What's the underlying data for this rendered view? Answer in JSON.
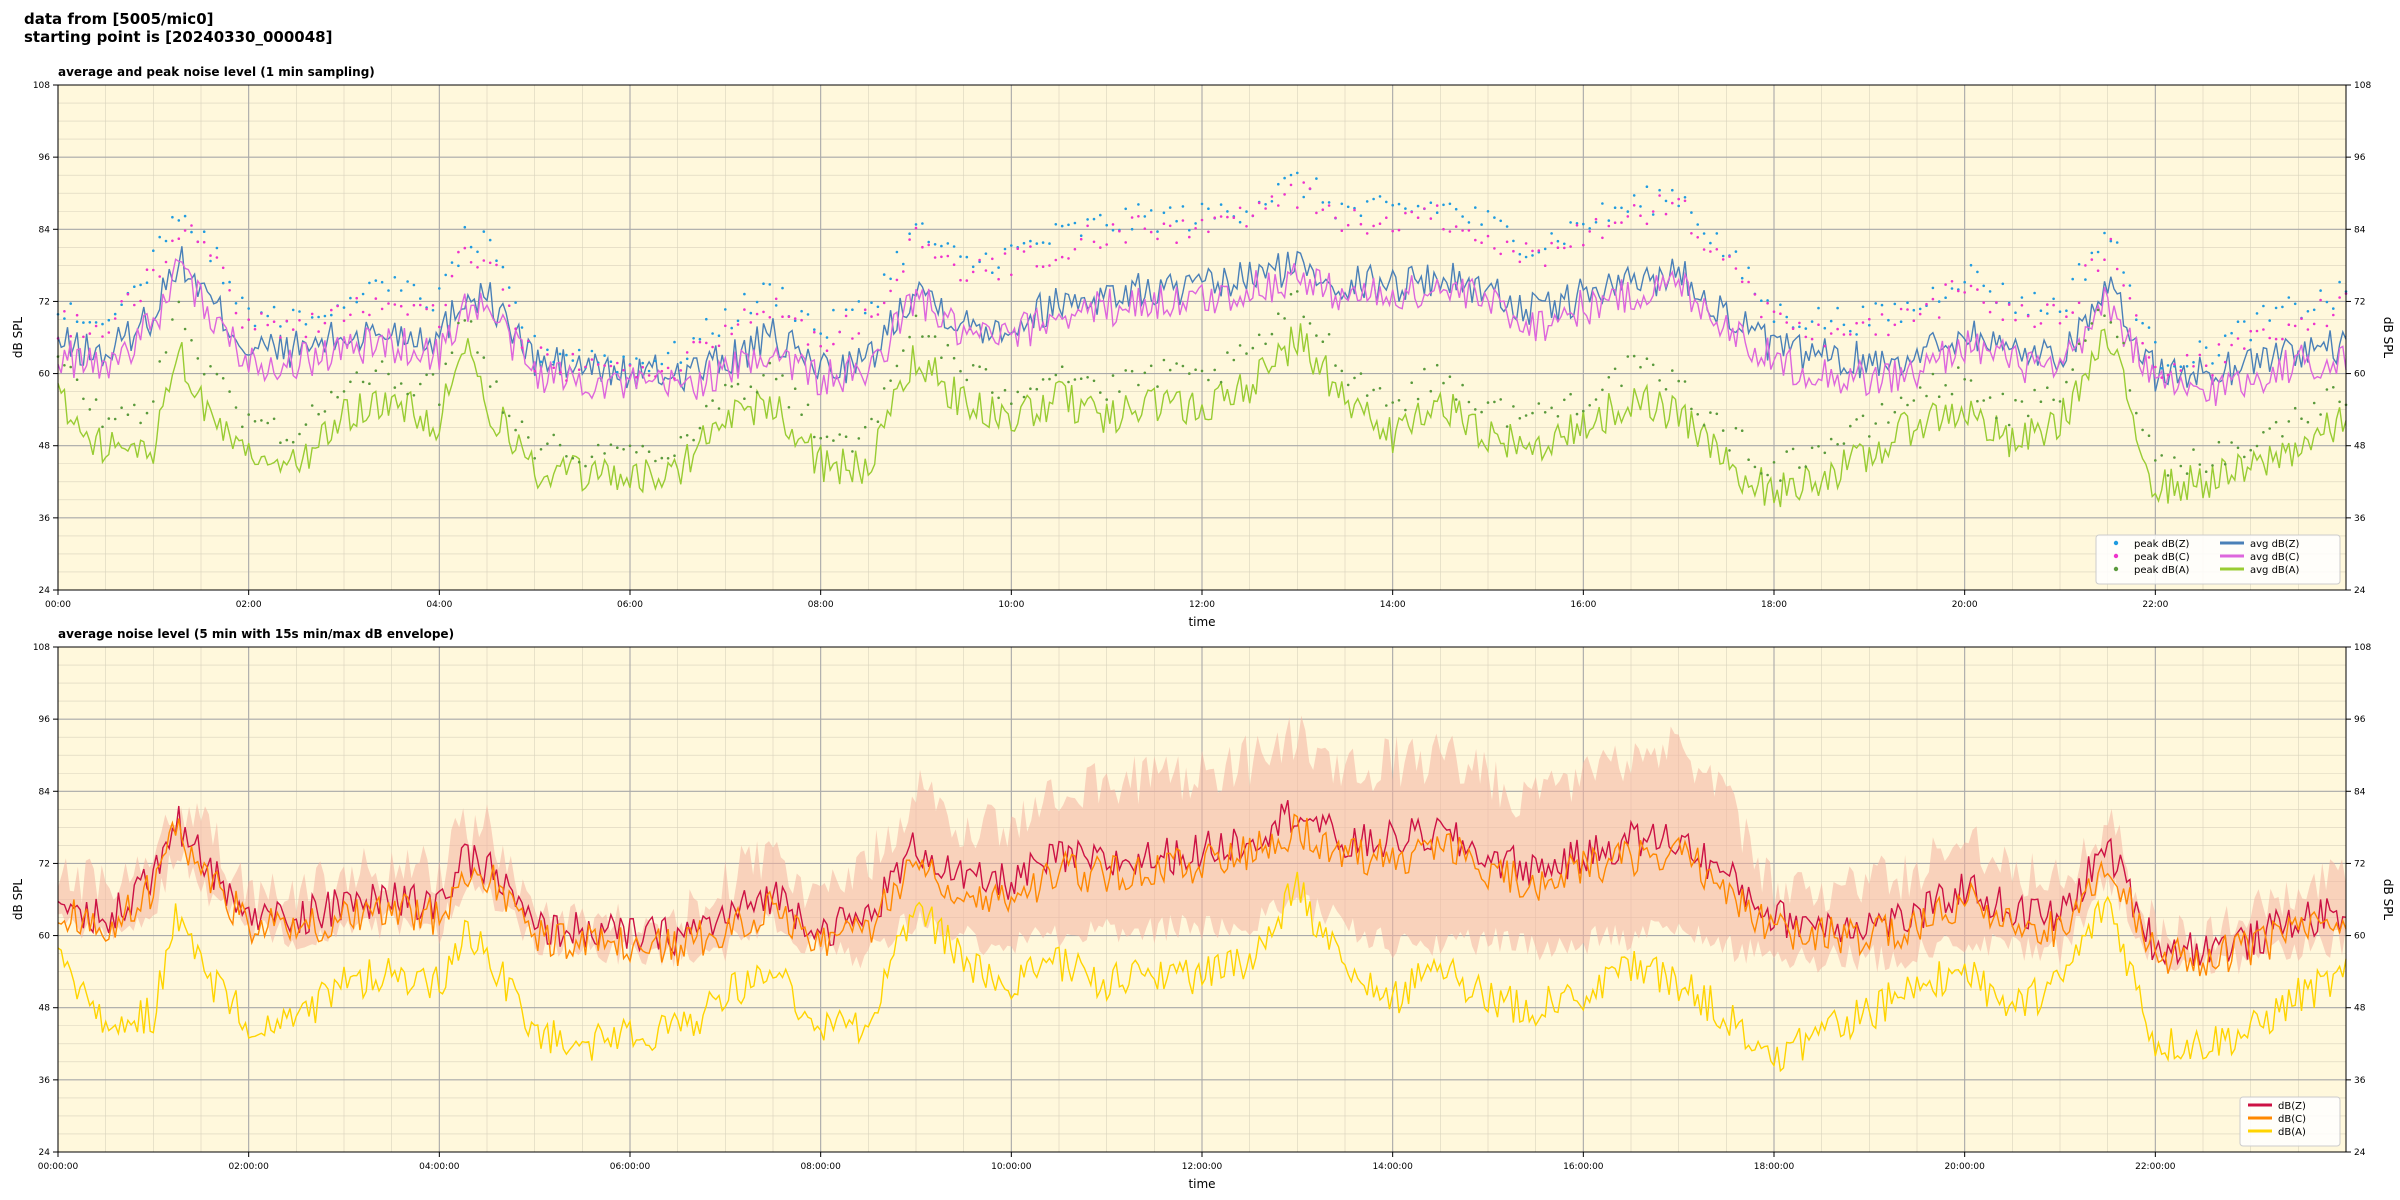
{
  "header": {
    "line1": "data from [5005/mic0]",
    "line2": "starting point is [20240330_000048]"
  },
  "colors": {
    "panel_bg": "#fff8dc",
    "peak_z": "#1f9be0",
    "peak_c": "#ee33cc",
    "peak_a": "#5a9a3c",
    "avg_z": "#4a80b8",
    "avg_c": "#dd66dd",
    "avg_a": "#99cc33",
    "dbz": "#cc1144",
    "dbc": "#ff8800",
    "dba": "#ffd400",
    "envelope": "#f4b3a0"
  },
  "chart_data": [
    {
      "type": "line",
      "title": "average and peak noise level (1 min sampling)",
      "xlabel": "time",
      "ylabel": "dB SPL",
      "ylabel_right": "dB SPL",
      "xlim": [
        0,
        24
      ],
      "ylim": [
        24,
        108
      ],
      "yticks": [
        24,
        36,
        48,
        60,
        72,
        84,
        96,
        108
      ],
      "xticks": [
        0,
        2,
        4,
        6,
        8,
        10,
        12,
        14,
        16,
        18,
        20,
        22
      ],
      "xtick_labels": [
        "00:00",
        "02:00",
        "04:00",
        "06:00",
        "08:00",
        "10:00",
        "12:00",
        "14:00",
        "16:00",
        "18:00",
        "20:00",
        "22:00"
      ],
      "grid": true,
      "legend_position": "bottom-right",
      "legend": [
        {
          "label": "peak dB(Z)",
          "marker": "dot",
          "color_key": "peak_z"
        },
        {
          "label": "peak dB(C)",
          "marker": "dot",
          "color_key": "peak_c"
        },
        {
          "label": "peak dB(A)",
          "marker": "dot",
          "color_key": "peak_a"
        },
        {
          "label": "avg dB(Z)",
          "marker": "line",
          "color_key": "avg_z"
        },
        {
          "label": "avg dB(C)",
          "marker": "line",
          "color_key": "avg_c"
        },
        {
          "label": "avg dB(A)",
          "marker": "line",
          "color_key": "avg_a"
        }
      ],
      "x": [
        0,
        0.5,
        1,
        1.25,
        1.5,
        2,
        2.5,
        3,
        3.5,
        4,
        4.25,
        4.5,
        5,
        5.5,
        6,
        6.5,
        7,
        7.5,
        8,
        8.5,
        9,
        9.5,
        10,
        10.5,
        11,
        11.5,
        12,
        12.5,
        13,
        13.5,
        14,
        14.5,
        15,
        15.5,
        16,
        16.5,
        17,
        17.5,
        18,
        18.5,
        19,
        19.5,
        20,
        20.5,
        21,
        21.5,
        22,
        22.5,
        23,
        23.5,
        24
      ],
      "series": [
        {
          "name": "avg dB(Z)",
          "color_key": "avg_z",
          "values": [
            65,
            63,
            70,
            79,
            74,
            64,
            64,
            66,
            67,
            66,
            73,
            73,
            62,
            61,
            60,
            60,
            62,
            66,
            61,
            62,
            75,
            68,
            68,
            72,
            73,
            74,
            74,
            76,
            78,
            75,
            75,
            76,
            74,
            70,
            73,
            75,
            77,
            70,
            64,
            63,
            62,
            63,
            67,
            64,
            63,
            74,
            60,
            60,
            62,
            64,
            64
          ]
        },
        {
          "name": "avg dB(C)",
          "color_key": "avg_c",
          "values": [
            63,
            61,
            68,
            77,
            72,
            62,
            62,
            64,
            65,
            63,
            71,
            71,
            60,
            59,
            58,
            58,
            60,
            64,
            59,
            60,
            73,
            66,
            66,
            70,
            71,
            72,
            72,
            74,
            76,
            73,
            73,
            74,
            72,
            68,
            71,
            73,
            75,
            68,
            62,
            60,
            59,
            60,
            65,
            62,
            60,
            72,
            58,
            57,
            59,
            62,
            62
          ]
        },
        {
          "name": "avg dB(A)",
          "color_key": "avg_a",
          "values": [
            56,
            47,
            48,
            65,
            55,
            47,
            45,
            53,
            55,
            52,
            66,
            55,
            44,
            43,
            43,
            44,
            52,
            55,
            45,
            44,
            63,
            55,
            52,
            56,
            52,
            55,
            54,
            58,
            66,
            56,
            50,
            55,
            49,
            48,
            51,
            56,
            53,
            45,
            40,
            43,
            46,
            52,
            54,
            48,
            52,
            66,
            41,
            42,
            44,
            48,
            52
          ]
        },
        {
          "name": "peak dB(Z)",
          "color_key": "peak_z",
          "scatter": true,
          "values": [
            70,
            69,
            78,
            87,
            84,
            70,
            70,
            72,
            74,
            72,
            82,
            81,
            64,
            63,
            62,
            63,
            69,
            74,
            67,
            71,
            84,
            78,
            80,
            83,
            85,
            86,
            86,
            88,
            92,
            87,
            87,
            88,
            85,
            81,
            85,
            88,
            90,
            80,
            70,
            69,
            69,
            71,
            77,
            72,
            71,
            84,
            63,
            63,
            68,
            71,
            73
          ]
        },
        {
          "name": "peak dB(C)",
          "color_key": "peak_c",
          "scatter": true,
          "values": [
            68,
            67,
            76,
            85,
            82,
            68,
            68,
            70,
            72,
            70,
            80,
            79,
            62,
            61,
            60,
            61,
            67,
            72,
            65,
            69,
            82,
            76,
            78,
            81,
            83,
            84,
            84,
            86,
            90,
            85,
            85,
            86,
            83,
            79,
            83,
            86,
            88,
            78,
            68,
            67,
            67,
            69,
            75,
            70,
            69,
            82,
            61,
            61,
            66,
            69,
            71
          ]
        },
        {
          "name": "peak dB(A)",
          "color_key": "peak_a",
          "scatter": true,
          "values": [
            62,
            52,
            55,
            72,
            62,
            52,
            50,
            58,
            60,
            57,
            72,
            60,
            48,
            47,
            47,
            48,
            57,
            60,
            50,
            49,
            69,
            60,
            57,
            61,
            57,
            60,
            59,
            63,
            72,
            61,
            55,
            60,
            54,
            53,
            56,
            61,
            58,
            50,
            44,
            48,
            51,
            57,
            59,
            53,
            57,
            72,
            45,
            46,
            48,
            53,
            57
          ]
        }
      ]
    },
    {
      "type": "line",
      "title": "average noise level (5 min with 15s min/max dB envelope)",
      "xlabel": "time",
      "ylabel": "dB SPL",
      "ylabel_right": "dB SPL",
      "xlim": [
        0,
        24
      ],
      "ylim": [
        24,
        108
      ],
      "yticks": [
        24,
        36,
        48,
        60,
        72,
        84,
        96,
        108
      ],
      "xticks": [
        0,
        2,
        4,
        6,
        8,
        10,
        12,
        14,
        16,
        18,
        20,
        22
      ],
      "xtick_labels": [
        "00:00:00",
        "02:00:00",
        "04:00:00",
        "06:00:00",
        "08:00:00",
        "10:00:00",
        "12:00:00",
        "14:00:00",
        "16:00:00",
        "18:00:00",
        "20:00:00",
        "22:00:00"
      ],
      "grid": true,
      "legend_position": "bottom-right",
      "legend": [
        {
          "label": "dB(Z)",
          "marker": "line",
          "color_key": "dbz"
        },
        {
          "label": "dB(C)",
          "marker": "line",
          "color_key": "dbc"
        },
        {
          "label": "dB(A)",
          "marker": "line",
          "color_key": "dba"
        }
      ],
      "x": [
        0,
        0.5,
        1,
        1.25,
        1.5,
        2,
        2.5,
        3,
        3.5,
        4,
        4.25,
        4.5,
        5,
        5.5,
        6,
        6.5,
        7,
        7.5,
        8,
        8.5,
        9,
        9.5,
        10,
        10.5,
        11,
        11.5,
        12,
        12.5,
        13,
        13.5,
        14,
        14.5,
        15,
        15.5,
        16,
        16.5,
        17,
        17.5,
        18,
        18.5,
        19,
        19.5,
        20,
        20.5,
        21,
        21.5,
        22,
        22.5,
        23,
        23.5,
        24
      ],
      "envelope": {
        "color_key": "envelope",
        "upper": [
          70,
          68,
          76,
          82,
          79,
          67,
          66,
          70,
          72,
          70,
          78,
          78,
          62,
          62,
          61,
          62,
          69,
          74,
          66,
          72,
          84,
          77,
          78,
          85,
          86,
          86,
          87,
          89,
          93,
          87,
          89,
          90,
          86,
          82,
          86,
          90,
          93,
          82,
          67,
          67,
          69,
          70,
          77,
          71,
          70,
          79,
          60,
          60,
          63,
          67,
          69
        ],
        "lower": [
          62,
          61,
          64,
          75,
          68,
          61,
          60,
          61,
          62,
          61,
          68,
          68,
          59,
          58,
          57,
          57,
          58,
          62,
          57,
          57,
          63,
          60,
          58,
          60,
          61,
          61,
          61,
          62,
          65,
          62,
          58,
          59,
          59,
          58,
          59,
          60,
          61,
          58,
          56,
          56,
          56,
          57,
          59,
          58,
          57,
          70,
          56,
          56,
          56,
          58,
          59
        ]
      },
      "series": [
        {
          "name": "dB(Z)",
          "color_key": "dbz",
          "values": [
            65,
            63,
            70,
            79,
            73,
            63,
            63,
            65,
            66,
            65,
            72,
            72,
            61,
            61,
            60,
            60,
            63,
            67,
            61,
            63,
            75,
            69,
            69,
            73,
            72,
            73,
            74,
            76,
            81,
            75,
            76,
            77,
            73,
            71,
            73,
            76,
            76,
            70,
            63,
            62,
            62,
            63,
            68,
            64,
            63,
            75,
            58,
            58,
            59,
            63,
            63
          ]
        },
        {
          "name": "dB(C)",
          "color_key": "dbc",
          "values": [
            64,
            61,
            68,
            78,
            71,
            62,
            61,
            63,
            64,
            63,
            70,
            70,
            60,
            59,
            58,
            58,
            61,
            65,
            59,
            61,
            73,
            67,
            66,
            71,
            70,
            71,
            72,
            74,
            78,
            73,
            73,
            75,
            71,
            68,
            71,
            73,
            74,
            68,
            61,
            60,
            60,
            61,
            66,
            62,
            61,
            73,
            57,
            56,
            58,
            61,
            61
          ]
        },
        {
          "name": "dB(A)",
          "color_key": "dba",
          "values": [
            56,
            46,
            47,
            64,
            54,
            46,
            46,
            52,
            54,
            52,
            60,
            57,
            44,
            42,
            43,
            44,
            50,
            55,
            44,
            45,
            66,
            55,
            52,
            55,
            52,
            54,
            53,
            56,
            68,
            54,
            49,
            55,
            49,
            48,
            50,
            55,
            52,
            47,
            40,
            44,
            47,
            52,
            54,
            48,
            52,
            66,
            42,
            42,
            44,
            50,
            53
          ]
        }
      ]
    }
  ]
}
